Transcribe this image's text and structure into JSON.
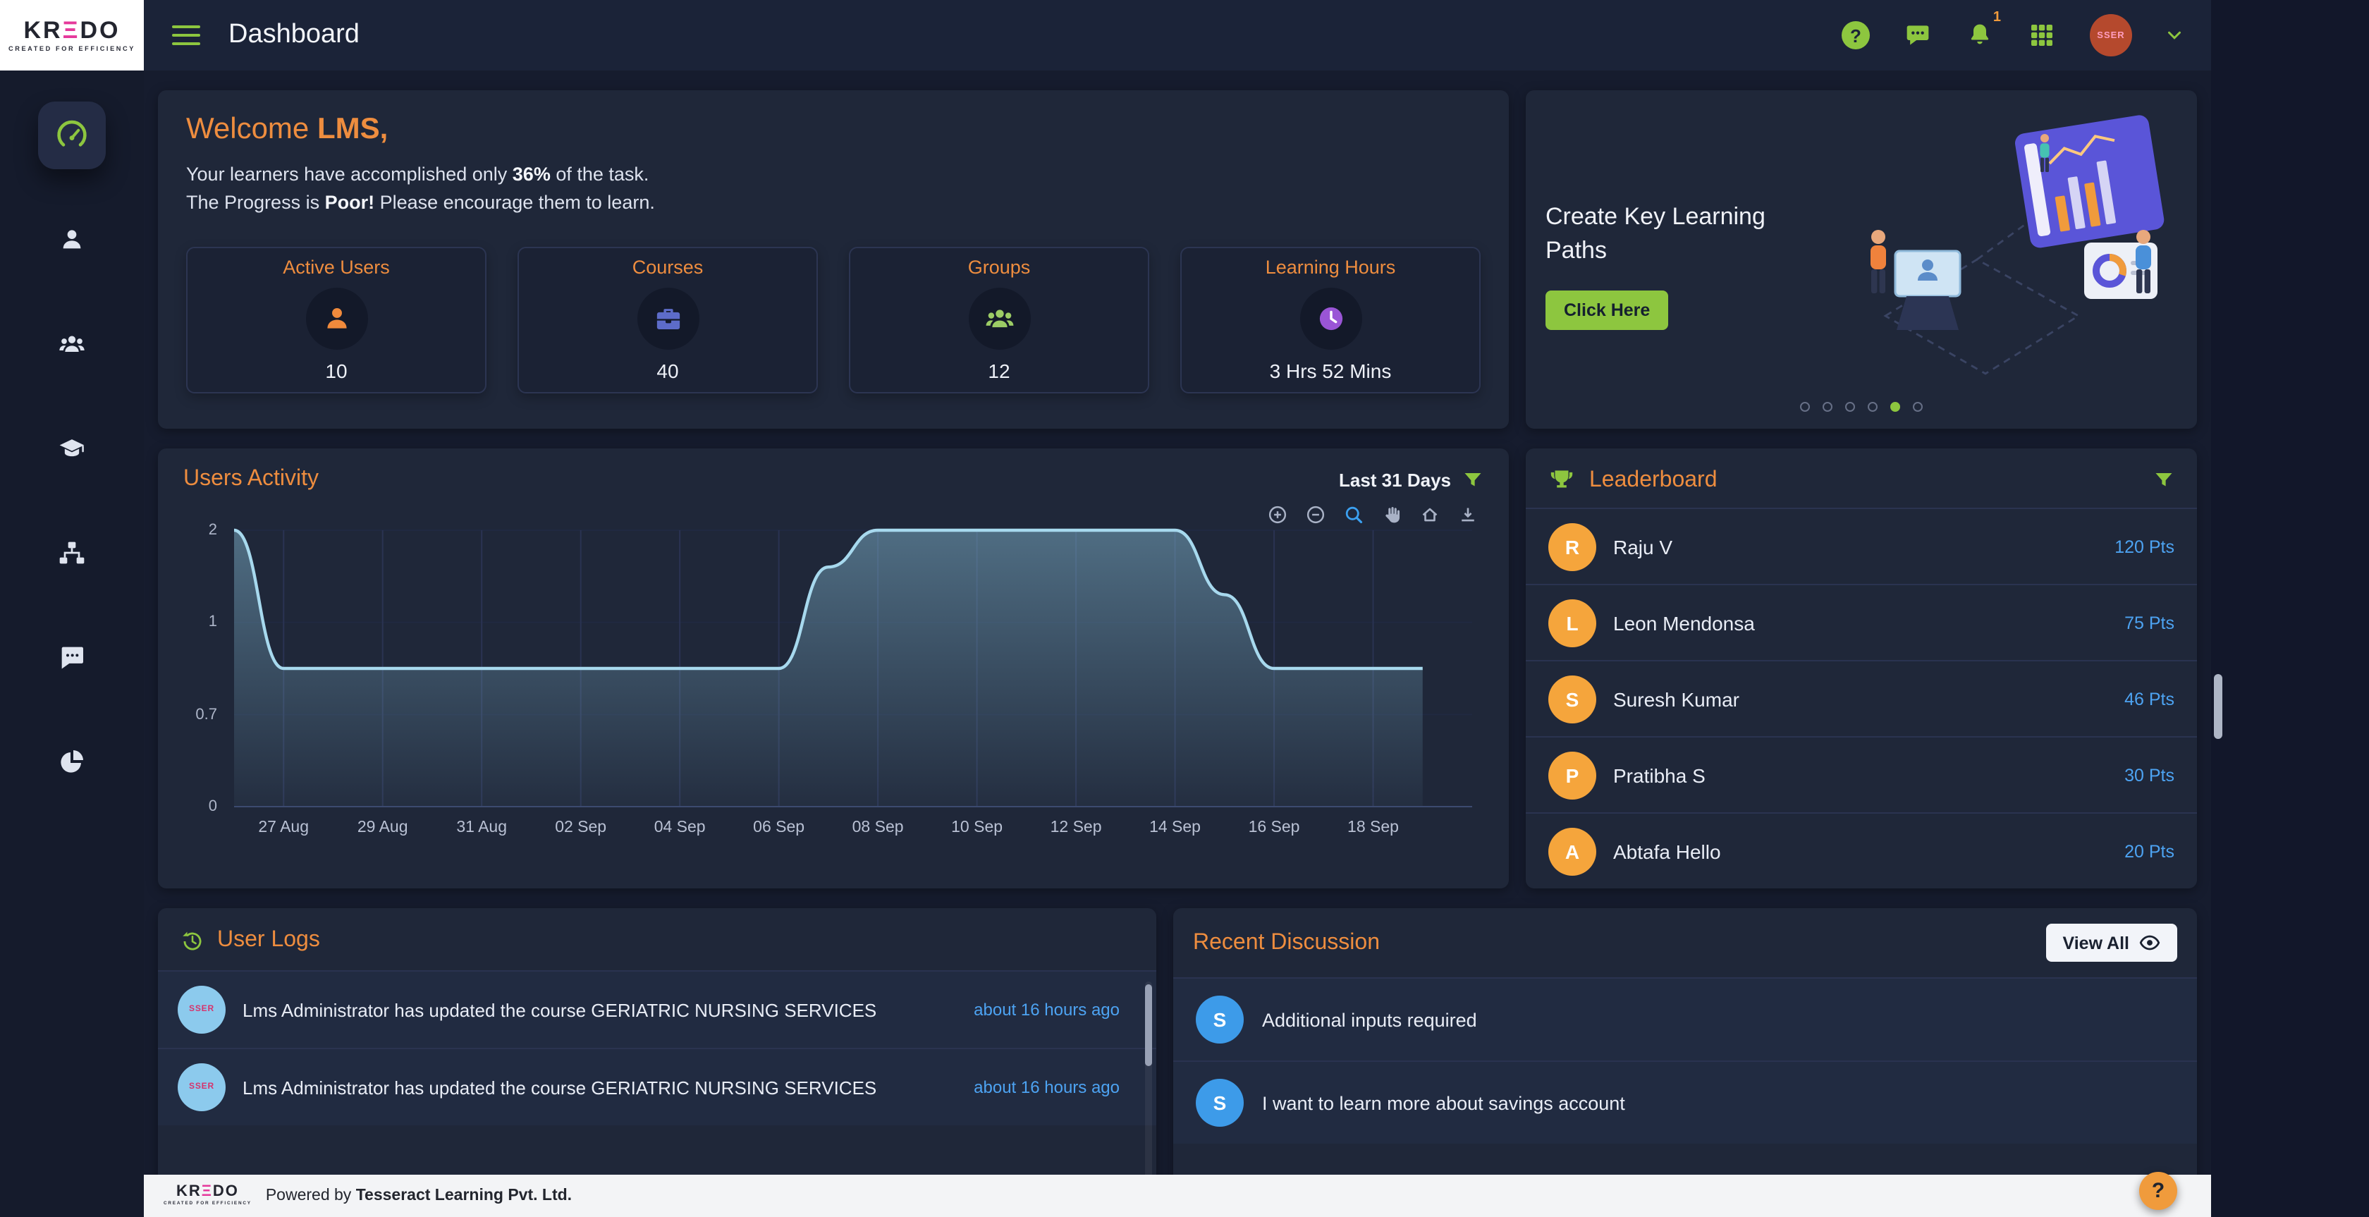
{
  "brand": {
    "logo_kr": "KR",
    "logo_e": "Ξ",
    "logo_do": "DO",
    "tagline": "CREATED FOR EFFICIENCY"
  },
  "topbar": {
    "title": "Dashboard",
    "help_glyph": "?",
    "notification_badge": "1",
    "avatar_text": "SSER"
  },
  "sidebar": {
    "items": [
      "gauge",
      "person",
      "people",
      "graduation-cap",
      "sitemap",
      "chat",
      "pie-chart"
    ],
    "active_item": "gauge"
  },
  "welcome": {
    "title_prefix": "Welcome ",
    "title_name": "LMS,",
    "line1_pre": "Your learners have accomplished only ",
    "line1_bold": "36%",
    "line1_post": " of the task.",
    "line2_pre": "The Progress is ",
    "line2_bold": "Poor!",
    "line2_post": " Please encourage them to learn."
  },
  "stats": [
    {
      "label": "Active Users",
      "value": "10",
      "icon": "person-icon",
      "color": "#f08a3c"
    },
    {
      "label": "Courses",
      "value": "40",
      "icon": "briefcase-icon",
      "color": "#5d6cc9"
    },
    {
      "label": "Groups",
      "value": "12",
      "icon": "people-icon",
      "color": "#9ccc65"
    },
    {
      "label": "Learning Hours",
      "value": "3 Hrs 52 Mins",
      "icon": "clock-icon",
      "color": "#9a55d6"
    }
  ],
  "promo": {
    "title": "Create Key Learning Paths",
    "button_label": "Click Here",
    "dots_count": 6,
    "active_dot_index": 4
  },
  "users_activity": {
    "title": "Users Activity",
    "range_label": "Last 31 Days",
    "toolbar": [
      "zoom-in",
      "zoom-out",
      "selection-zoom",
      "pan",
      "home",
      "download"
    ]
  },
  "chart_data": {
    "type": "area",
    "title": "Users Activity",
    "x_tick_labels": [
      "27 Aug",
      "29 Aug",
      "31 Aug",
      "02 Sep",
      "04 Sep",
      "06 Sep",
      "08 Sep",
      "10 Sep",
      "12 Sep",
      "14 Sep",
      "16 Sep",
      "18 Sep"
    ],
    "x_tick_days": [
      1,
      3,
      5,
      7,
      9,
      11,
      13,
      15,
      17,
      19,
      21,
      23
    ],
    "x_domain_days": 25,
    "y_tick_labels": [
      "2",
      "1",
      "0.7",
      "0"
    ],
    "y_tick_values": [
      2,
      1,
      0.7,
      0
    ],
    "series": [
      {
        "name": "Users",
        "dates": [
          "26 Aug",
          "27 Aug",
          "28 Aug",
          "29 Aug",
          "30 Aug",
          "31 Aug",
          "01 Sep",
          "02 Sep",
          "03 Sep",
          "04 Sep",
          "05 Sep",
          "06 Sep",
          "07 Sep",
          "08 Sep",
          "09 Sep",
          "10 Sep",
          "11 Sep",
          "12 Sep",
          "13 Sep",
          "14 Sep",
          "15 Sep",
          "16 Sep",
          "17 Sep",
          "18 Sep",
          "19 Sep"
        ],
        "values": [
          2,
          0.85,
          0.85,
          0.85,
          0.85,
          0.85,
          0.85,
          0.85,
          0.85,
          0.85,
          0.85,
          0.85,
          1.6,
          2,
          2,
          2,
          2,
          2,
          2,
          2,
          1.3,
          0.85,
          0.85,
          0.85,
          0.85
        ]
      }
    ],
    "line_color": "#a7d9ee",
    "fill_color": "#7fb3cc",
    "grid": true,
    "legend": false
  },
  "leaderboard": {
    "title": "Leaderboard",
    "entries": [
      {
        "initial": "R",
        "name": "Raju V",
        "points": "120 Pts"
      },
      {
        "initial": "L",
        "name": "Leon Mendonsa",
        "points": "75 Pts"
      },
      {
        "initial": "S",
        "name": "Suresh Kumar",
        "points": "46 Pts"
      },
      {
        "initial": "P",
        "name": "Pratibha S",
        "points": "30 Pts"
      },
      {
        "initial": "A",
        "name": "Abtafa Hello",
        "points": "20 Pts"
      }
    ]
  },
  "user_logs": {
    "title": "User Logs",
    "entries": [
      {
        "avatar_text": "SSER",
        "text": "Lms Administrator has updated the course GERIATRIC NURSING SERVICES",
        "time": "about 16 hours ago"
      },
      {
        "avatar_text": "SSER",
        "text": "Lms Administrator has updated the course GERIATRIC NURSING SERVICES",
        "time": "about 16 hours ago"
      }
    ]
  },
  "discussion": {
    "title": "Recent Discussion",
    "view_all_label": "View All",
    "entries": [
      {
        "initial": "S",
        "text": "Additional inputs required"
      },
      {
        "initial": "S",
        "text": "I want to learn more about savings account"
      }
    ]
  },
  "footer": {
    "powered_prefix": "Powered by ",
    "company": "Tesseract Learning Pvt. Ltd."
  },
  "fab": {
    "glyph": "?"
  },
  "colors": {
    "accent_orange": "#ec8c3e",
    "accent_green": "#8dc63f",
    "accent_blue": "#4da3f2",
    "page_bg": "#161c2e",
    "card_bg": "#1f2739",
    "logo_magenta": "#e5399b"
  }
}
